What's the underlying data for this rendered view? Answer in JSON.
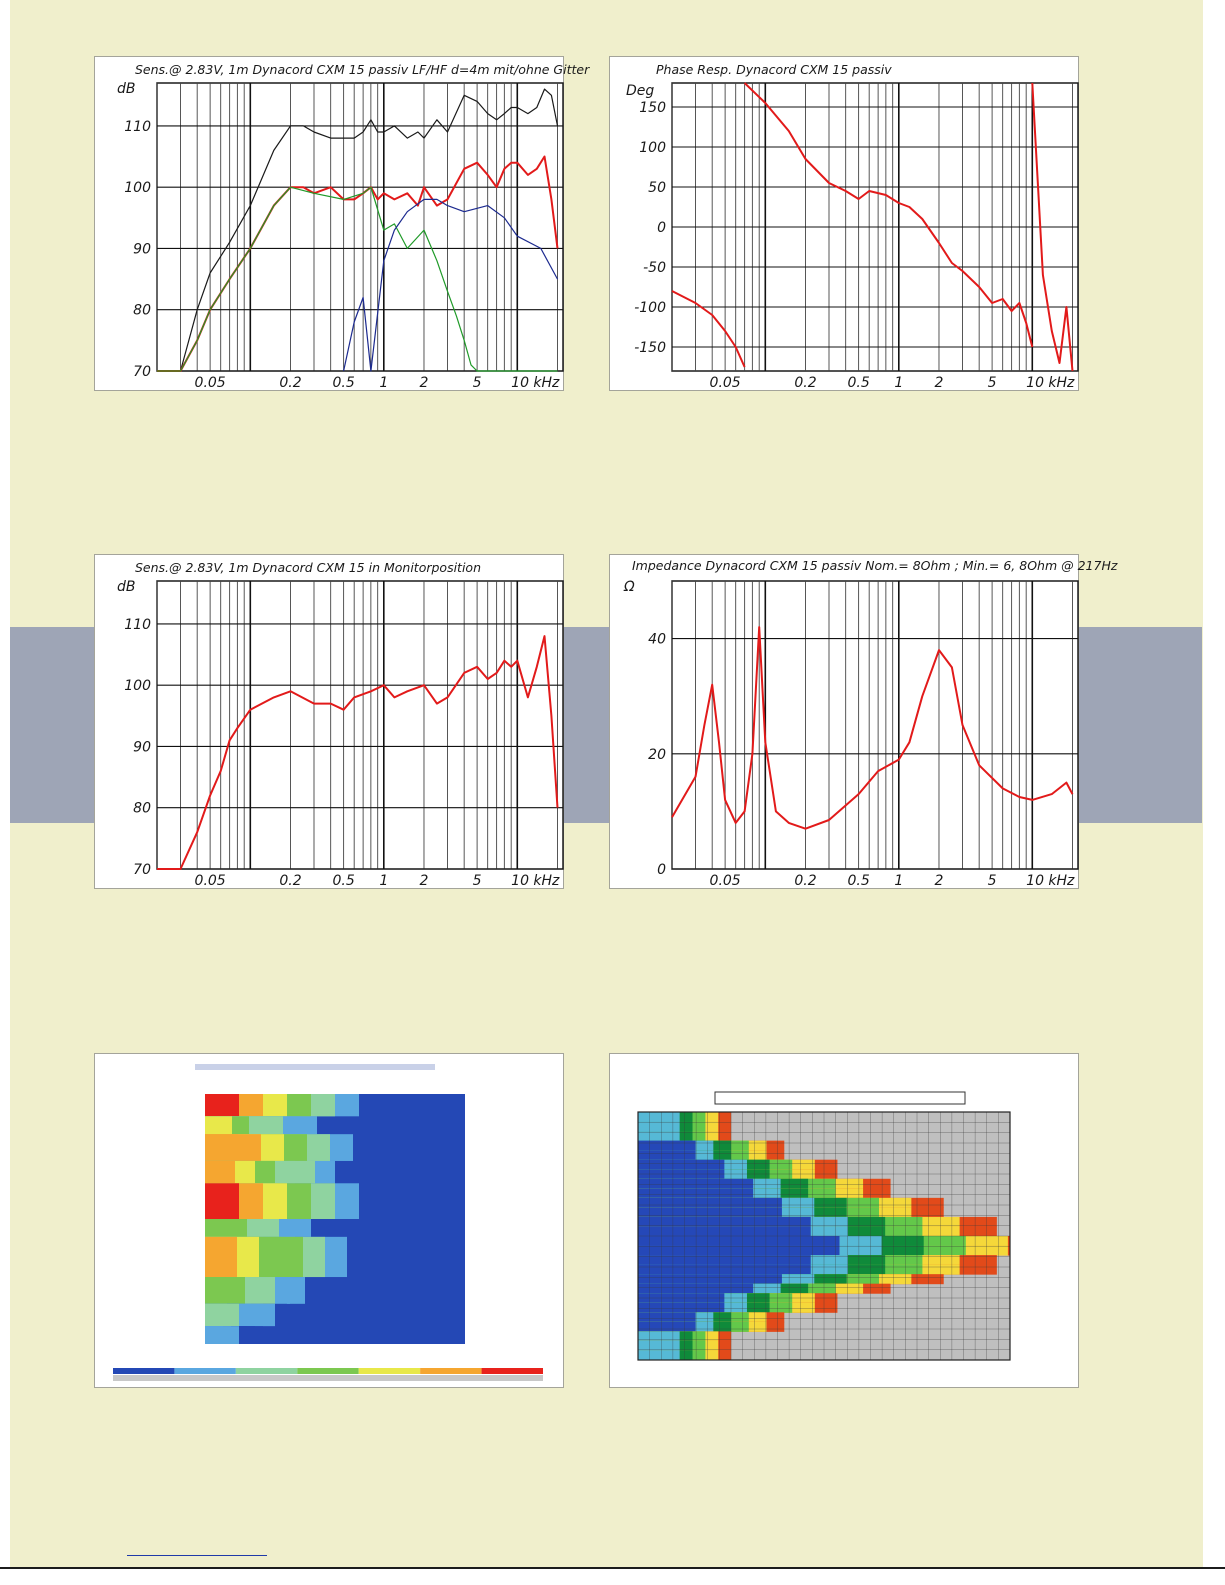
{
  "chart_data": [
    {
      "type": "line",
      "id": "freq_main",
      "title": "Sens.@ 2.83V, 1m Dynacord CXM 15 passiv LF/HF d=4m mit/ohne Gitter",
      "ylabel": "dB",
      "xunit": "kHz",
      "xscale": "log",
      "xlim": [
        0.02,
        22
      ],
      "ylim": [
        70,
        117
      ],
      "grid": true,
      "yticks": [
        {
          "value": 70,
          "label": "70"
        },
        {
          "value": 80,
          "label": "80"
        },
        {
          "value": 90,
          "label": "90"
        },
        {
          "value": 100,
          "label": "100"
        },
        {
          "value": 110,
          "label": "110"
        }
      ],
      "xticks": [
        {
          "value": 0.05,
          "label": "0.05"
        },
        {
          "value": 0.2,
          "label": "0.2"
        },
        {
          "value": 0.5,
          "label": "0.5"
        },
        {
          "value": 1,
          "label": "1"
        },
        {
          "value": 2,
          "label": "2"
        },
        {
          "value": 5,
          "label": "5"
        },
        {
          "value": 10,
          "label": "10 kHz"
        }
      ],
      "series": [
        {
          "color": "#1a1a1a",
          "x": [
            0.02,
            0.03,
            0.04,
            0.05,
            0.07,
            0.1,
            0.15,
            0.2,
            0.25,
            0.3,
            0.4,
            0.5,
            0.6,
            0.7,
            0.8,
            0.9,
            1,
            1.2,
            1.5,
            1.8,
            2,
            2.5,
            3,
            4,
            5,
            6,
            7,
            8,
            9,
            10,
            12,
            14,
            16,
            18,
            20
          ],
          "y": [
            70,
            70,
            80,
            86,
            91,
            97,
            106,
            110,
            110,
            109,
            108,
            108,
            108,
            109,
            111,
            109,
            109,
            110,
            108,
            109,
            108,
            111,
            109,
            115,
            114,
            112,
            111,
            112,
            113,
            113,
            112,
            113,
            116,
            115,
            110
          ]
        },
        {
          "color": "#e21a1a",
          "x": [
            0.02,
            0.03,
            0.04,
            0.05,
            0.07,
            0.1,
            0.15,
            0.2,
            0.25,
            0.3,
            0.4,
            0.5,
            0.6,
            0.7,
            0.8,
            0.9,
            1,
            1.2,
            1.5,
            1.8,
            2,
            2.5,
            3,
            4,
            5,
            6,
            7,
            8,
            9,
            10,
            12,
            14,
            16,
            18,
            20
          ],
          "y": [
            70,
            70,
            75,
            80,
            85,
            90,
            97,
            100,
            100,
            99,
            100,
            98,
            98,
            99,
            100,
            98,
            99,
            98,
            99,
            97,
            100,
            97,
            98,
            103,
            104,
            102,
            100,
            103,
            104,
            104,
            102,
            103,
            105,
            98,
            90
          ]
        },
        {
          "color": "#1f9a28",
          "x": [
            0.02,
            0.03,
            0.04,
            0.05,
            0.07,
            0.1,
            0.15,
            0.2,
            0.3,
            0.5,
            0.7,
            0.8,
            1,
            1.2,
            1.5,
            2,
            2.5,
            3,
            3.5,
            4,
            4.5,
            5,
            8,
            20
          ],
          "y": [
            70,
            70,
            75,
            80,
            85,
            90,
            97,
            100,
            99,
            98,
            99,
            100,
            93,
            94,
            90,
            93,
            88,
            83,
            79,
            75,
            71,
            70,
            70,
            70
          ]
        },
        {
          "color": "#1c2a8f",
          "x": [
            0.5,
            0.6,
            0.7,
            0.8,
            1,
            1.2,
            1.5,
            2,
            2.5,
            3,
            4,
            6,
            8,
            10,
            15,
            20
          ],
          "y": [
            70,
            78,
            82,
            70,
            88,
            93,
            96,
            98,
            98,
            97,
            96,
            97,
            95,
            92,
            90,
            85
          ]
        }
      ]
    },
    {
      "type": "line",
      "id": "phase",
      "title": "Phase Resp. Dynacord CXM 15 passiv",
      "ylabel": "Deg",
      "xunit": "kHz",
      "xscale": "log",
      "xlim": [
        0.02,
        22
      ],
      "ylim": [
        -180,
        180
      ],
      "grid": true,
      "yticks": [
        {
          "value": -150,
          "label": "-150"
        },
        {
          "value": -100,
          "label": "-100"
        },
        {
          "value": -50,
          "label": "-50"
        },
        {
          "value": 0,
          "label": "0"
        },
        {
          "value": 50,
          "label": "50"
        },
        {
          "value": 100,
          "label": "100"
        },
        {
          "value": 150,
          "label": "150"
        }
      ],
      "xticks": [
        {
          "value": 0.05,
          "label": "0.05"
        },
        {
          "value": 0.2,
          "label": "0.2"
        },
        {
          "value": 0.5,
          "label": "0.5"
        },
        {
          "value": 1,
          "label": "1"
        },
        {
          "value": 2,
          "label": "2"
        },
        {
          "value": 5,
          "label": "5"
        },
        {
          "value": 10,
          "label": "10 kHz"
        }
      ],
      "series": [
        {
          "color": "#e21a1a",
          "x": [
            0.02,
            0.03,
            0.04,
            0.05,
            0.06,
            0.07,
            0.07,
            0.1,
            0.15,
            0.2,
            0.3,
            0.4,
            0.5,
            0.6,
            0.8,
            1,
            1.2,
            1.5,
            2,
            2.5,
            3,
            4,
            5,
            6,
            7,
            8,
            9,
            10,
            10,
            12,
            14,
            16,
            18,
            20
          ],
          "y": [
            -80,
            -95,
            -110,
            -130,
            -150,
            -175,
            180,
            155,
            120,
            85,
            55,
            45,
            35,
            45,
            40,
            30,
            25,
            10,
            -20,
            -45,
            -55,
            -75,
            -95,
            -90,
            -105,
            -95,
            -120,
            -150,
            180,
            -60,
            -130,
            -170,
            -100,
            -180
          ]
        }
      ]
    },
    {
      "type": "line",
      "id": "freq_monitor",
      "title": "Sens.@ 2.83V, 1m Dynacord CXM 15 in Monitorposition",
      "ylabel": "dB",
      "xunit": "kHz",
      "xscale": "log",
      "xlim": [
        0.02,
        22
      ],
      "ylim": [
        70,
        117
      ],
      "grid": true,
      "yticks": [
        {
          "value": 70,
          "label": "70"
        },
        {
          "value": 80,
          "label": "80"
        },
        {
          "value": 90,
          "label": "90"
        },
        {
          "value": 100,
          "label": "100"
        },
        {
          "value": 110,
          "label": "110"
        }
      ],
      "xticks": [
        {
          "value": 0.05,
          "label": "0.05"
        },
        {
          "value": 0.2,
          "label": "0.2"
        },
        {
          "value": 0.5,
          "label": "0.5"
        },
        {
          "value": 1,
          "label": "1"
        },
        {
          "value": 2,
          "label": "2"
        },
        {
          "value": 5,
          "label": "5"
        },
        {
          "value": 10,
          "label": "10 kHz"
        }
      ],
      "series": [
        {
          "color": "#e21a1a",
          "x": [
            0.02,
            0.03,
            0.04,
            0.05,
            0.06,
            0.07,
            0.08,
            0.1,
            0.15,
            0.2,
            0.3,
            0.4,
            0.5,
            0.6,
            0.8,
            1,
            1.2,
            1.5,
            2,
            2.5,
            3,
            4,
            5,
            6,
            7,
            8,
            9,
            10,
            12,
            14,
            16,
            18,
            20
          ],
          "y": [
            70,
            70,
            76,
            82,
            86,
            91,
            93,
            96,
            98,
            99,
            97,
            97,
            96,
            98,
            99,
            100,
            98,
            99,
            100,
            97,
            98,
            102,
            103,
            101,
            102,
            104,
            103,
            104,
            98,
            103,
            108,
            95,
            80
          ]
        }
      ]
    },
    {
      "type": "line",
      "id": "impedance",
      "title": "Impedance Dynacord CXM 15 passiv Nom.= 8Ohm ; Min.= 6, 8Ohm @ 217Hz",
      "ylabel": "Ω",
      "xunit": "kHz",
      "xscale": "log",
      "xlim": [
        0.02,
        22
      ],
      "ylim": [
        0,
        50
      ],
      "grid": true,
      "yticks": [
        {
          "value": 0,
          "label": "0"
        },
        {
          "value": 20,
          "label": "20"
        },
        {
          "value": 40,
          "label": "40"
        }
      ],
      "xticks": [
        {
          "value": 0.05,
          "label": "0.05"
        },
        {
          "value": 0.2,
          "label": "0.2"
        },
        {
          "value": 0.5,
          "label": "0.5"
        },
        {
          "value": 1,
          "label": "1"
        },
        {
          "value": 2,
          "label": "2"
        },
        {
          "value": 5,
          "label": "5"
        },
        {
          "value": 10,
          "label": "10 kHz"
        }
      ],
      "series": [
        {
          "color": "#e21a1a",
          "x": [
            0.02,
            0.03,
            0.035,
            0.04,
            0.045,
            0.05,
            0.06,
            0.07,
            0.08,
            0.09,
            0.1,
            0.12,
            0.15,
            0.2,
            0.3,
            0.5,
            0.7,
            1,
            1.2,
            1.5,
            2,
            2.5,
            3,
            4,
            6,
            8,
            10,
            14,
            18,
            20
          ],
          "y": [
            9,
            16,
            25,
            32,
            22,
            12,
            8,
            10,
            20,
            42,
            22,
            10,
            8,
            7,
            8.5,
            13,
            17,
            19,
            22,
            30,
            38,
            35,
            25,
            18,
            14,
            12.5,
            12,
            13,
            15,
            13
          ]
        }
      ]
    },
    {
      "type": "heatmap",
      "id": "waterfall",
      "title": "",
      "colorscale": [
        "#2448b5",
        "#5aa7e0",
        "#8fd3a0",
        "#7cc850",
        "#e8e84a",
        "#f5a630",
        "#e8221c"
      ],
      "bands": [
        {
          "value": 0.95,
          "rows": 5
        },
        {
          "value": 0.6,
          "rows": 4
        },
        {
          "value": 0.9,
          "rows": 6
        },
        {
          "value": 0.75,
          "rows": 5
        },
        {
          "value": 0.95,
          "rows": 8
        },
        {
          "value": 0.55,
          "rows": 4
        },
        {
          "value": 0.85,
          "rows": 9
        },
        {
          "value": 0.5,
          "rows": 6
        },
        {
          "value": 0.35,
          "rows": 5
        },
        {
          "value": 0.15,
          "rows": 4
        }
      ]
    },
    {
      "type": "heatmap",
      "id": "polar",
      "title": "",
      "colorscale": [
        "#bfbfbf",
        "#2548b8",
        "#56b9d6",
        "#0f8a3a",
        "#63c84a",
        "#f5d83a",
        "#e24a1a"
      ],
      "levels_by_angle": [
        6,
        6,
        6,
        5,
        5,
        4,
        4,
        3,
        3,
        2,
        2,
        1,
        1,
        0,
        0,
        1,
        1,
        2,
        3,
        4,
        4,
        5,
        5,
        6,
        6,
        6
      ]
    }
  ]
}
